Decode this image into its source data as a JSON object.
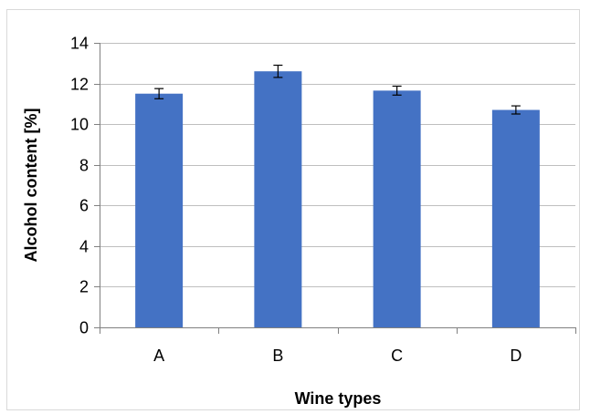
{
  "chart_data": {
    "type": "bar",
    "title": "",
    "xlabel": "Wine types",
    "ylabel": "Alcohol content [%]",
    "categories": [
      "A",
      "B",
      "C",
      "D"
    ],
    "values": [
      11.5,
      12.6,
      11.65,
      10.7
    ],
    "errors": [
      0.25,
      0.3,
      0.22,
      0.2
    ],
    "ylim": [
      0,
      14
    ],
    "yticks": [
      0,
      2,
      4,
      6,
      8,
      10,
      12,
      14
    ],
    "grid": true,
    "legend": "none",
    "colors": {
      "bar": "#4472C4",
      "grid": "#bfbfbf",
      "axis": "#808080",
      "error": "#000000"
    }
  }
}
